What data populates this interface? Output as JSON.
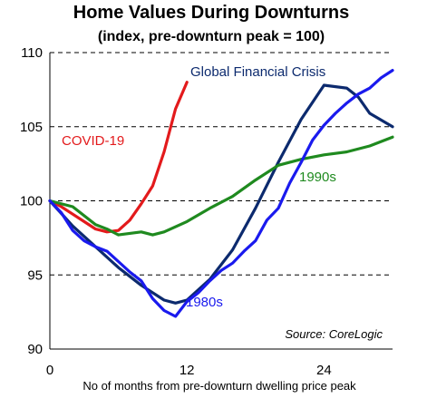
{
  "chart_data": {
    "type": "line",
    "title": "Home Values During Downturns",
    "subtitle": "(index, pre-downturn peak = 100)",
    "xlabel": "No of months from pre-downturn dwelling price peak",
    "ylabel": "",
    "xlim": [
      0,
      30
    ],
    "ylim": [
      90,
      110
    ],
    "x_ticks": [
      0,
      12,
      24
    ],
    "y_ticks": [
      90,
      95,
      100,
      105,
      110
    ],
    "gridlines": "dashed horizontal at 95, 100, 105, 110",
    "source": "Source: CoreLogic",
    "series": [
      {
        "name": "COVID-19",
        "color": "#e31a1c",
        "x": [
          0,
          1,
          2,
          3,
          4,
          5,
          6,
          7,
          8,
          9,
          10,
          11,
          12
        ],
        "y": [
          100,
          99.6,
          99.1,
          98.6,
          98.1,
          97.9,
          98.0,
          98.7,
          99.8,
          101.0,
          103.3,
          106.2,
          108.0
        ]
      },
      {
        "name": "Global Financial Crisis",
        "color": "#0c2a6e",
        "x": [
          0,
          2,
          4,
          6,
          8,
          10,
          11,
          12,
          14,
          16,
          18,
          20,
          22,
          24,
          26,
          27,
          28,
          30
        ],
        "y": [
          100,
          98.3,
          96.9,
          95.5,
          94.3,
          93.3,
          93.1,
          93.3,
          94.7,
          96.7,
          99.5,
          102.6,
          105.5,
          107.8,
          107.6,
          107.0,
          105.9,
          105.0
        ]
      },
      {
        "name": "1990s",
        "color": "#1f8a1f",
        "x": [
          0,
          2,
          4,
          5,
          6,
          8,
          9,
          10,
          12,
          14,
          16,
          18,
          20,
          22,
          24,
          26,
          28,
          30
        ],
        "y": [
          100,
          99.6,
          98.4,
          98.1,
          97.7,
          97.9,
          97.7,
          97.9,
          98.6,
          99.5,
          100.3,
          101.4,
          102.4,
          102.8,
          103.1,
          103.3,
          103.7,
          104.3
        ]
      },
      {
        "name": "1980s",
        "color": "#1a1aee",
        "x": [
          0,
          1,
          2,
          3,
          4,
          5,
          6,
          7,
          8,
          9,
          10,
          11,
          12,
          13,
          14,
          15,
          16,
          17,
          18,
          19,
          20,
          21,
          22,
          23,
          24,
          25,
          26,
          27,
          28,
          29,
          30
        ],
        "y": [
          100,
          99.2,
          98.0,
          97.3,
          96.9,
          96.6,
          95.9,
          95.2,
          94.6,
          93.4,
          92.6,
          92.2,
          93.2,
          93.8,
          94.6,
          95.3,
          95.8,
          96.6,
          97.3,
          98.7,
          99.5,
          101.2,
          102.6,
          104.1,
          105.1,
          105.9,
          106.6,
          107.2,
          107.6,
          108.3,
          108.8
        ]
      }
    ],
    "annotations": [
      "Global Financial Crisis",
      "COVID-19",
      "1990s",
      "1980s"
    ]
  }
}
